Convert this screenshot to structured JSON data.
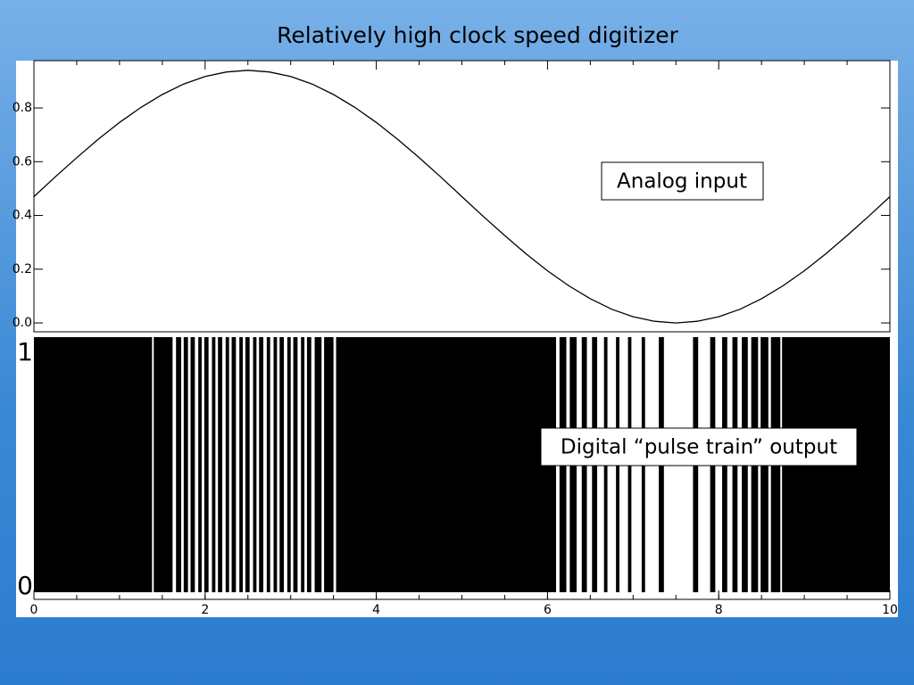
{
  "title": "Relatively high clock speed digitizer",
  "chart_data": [
    {
      "type": "line",
      "annotation": "Analog input",
      "x": [
        0,
        0.25,
        0.5,
        0.75,
        1,
        1.25,
        1.5,
        1.75,
        2,
        2.25,
        2.5,
        2.75,
        3,
        3.25,
        3.5,
        3.75,
        4,
        4.25,
        4.5,
        4.75,
        5,
        5.25,
        5.5,
        5.75,
        6,
        6.25,
        6.5,
        6.75,
        7,
        7.25,
        7.5,
        7.75,
        8,
        8.25,
        8.5,
        8.75,
        9,
        9.25,
        9.5,
        9.75,
        10
      ],
      "values": [
        0.47,
        0.544,
        0.615,
        0.683,
        0.746,
        0.802,
        0.85,
        0.889,
        0.917,
        0.934,
        0.94,
        0.934,
        0.917,
        0.889,
        0.85,
        0.802,
        0.746,
        0.683,
        0.615,
        0.544,
        0.47,
        0.396,
        0.325,
        0.257,
        0.194,
        0.138,
        0.09,
        0.051,
        0.023,
        0.006,
        0,
        0.006,
        0.023,
        0.051,
        0.09,
        0.138,
        0.194,
        0.257,
        0.325,
        0.396,
        0.47
      ],
      "color": "#000000",
      "xlim": [
        0,
        10
      ],
      "ylim": [
        -0.033,
        0.976
      ],
      "yticks": [
        {
          "value": 0,
          "label": "0.0"
        },
        0.2,
        0.4,
        0.6,
        0.8
      ]
    },
    {
      "type": "pulse",
      "annotation": "Digital “pulse train” output",
      "xlim": [
        0,
        10
      ],
      "ylim": [
        0,
        1
      ],
      "yticks": [
        0,
        1
      ],
      "xticks": [
        0,
        2,
        4,
        6,
        8,
        10
      ],
      "low_intervals": [
        [
          1.38,
          1.4
        ],
        [
          1.62,
          1.66
        ],
        [
          1.72,
          1.75
        ],
        [
          1.8,
          1.83
        ],
        [
          1.88,
          1.92
        ],
        [
          1.96,
          1.99
        ],
        [
          2.04,
          2.08
        ],
        [
          2.12,
          2.15
        ],
        [
          2.2,
          2.24
        ],
        [
          2.28,
          2.31
        ],
        [
          2.36,
          2.4
        ],
        [
          2.44,
          2.47
        ],
        [
          2.52,
          2.56
        ],
        [
          2.6,
          2.63
        ],
        [
          2.68,
          2.72
        ],
        [
          2.76,
          2.8
        ],
        [
          2.84,
          2.87
        ],
        [
          2.92,
          2.96
        ],
        [
          3.0,
          3.03
        ],
        [
          3.08,
          3.12
        ],
        [
          3.16,
          3.19
        ],
        [
          3.24,
          3.28
        ],
        [
          3.36,
          3.39
        ],
        [
          3.5,
          3.53
        ],
        [
          6.1,
          6.14
        ],
        [
          6.22,
          6.26
        ],
        [
          6.34,
          6.4
        ],
        [
          6.46,
          6.52
        ],
        [
          6.58,
          6.66
        ],
        [
          6.7,
          6.8
        ],
        [
          6.84,
          6.94
        ],
        [
          6.98,
          7.1
        ],
        [
          7.14,
          7.3
        ],
        [
          7.36,
          7.7
        ],
        [
          7.76,
          7.9
        ],
        [
          7.96,
          8.04
        ],
        [
          8.1,
          8.16
        ],
        [
          8.22,
          8.27
        ],
        [
          8.34,
          8.38
        ],
        [
          8.46,
          8.49
        ],
        [
          8.58,
          8.61
        ],
        [
          8.72,
          8.74
        ]
      ]
    }
  ]
}
